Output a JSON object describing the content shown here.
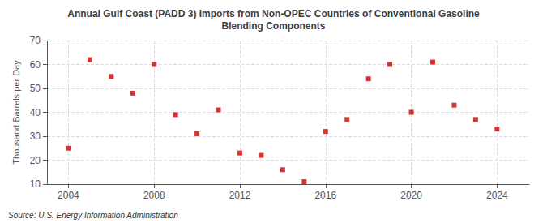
{
  "chart_data": {
    "type": "scatter",
    "title": "Annual Gulf Coast (PADD 3) Imports from Non-OPEC Countries of Conventional Gasoline\nBlending Components",
    "ylabel": "Thousand Barrels per Day",
    "annotation": "Source: U.S. Energy Information Administration",
    "x": [
      2004,
      2005,
      2006,
      2007,
      2008,
      2009,
      2010,
      2011,
      2012,
      2013,
      2014,
      2015,
      2016,
      2017,
      2018,
      2019,
      2020,
      2021,
      2022,
      2023,
      2024
    ],
    "values": [
      25,
      62,
      55,
      48,
      60,
      39,
      31,
      41,
      23,
      22,
      16,
      11,
      32,
      37,
      54,
      60,
      40,
      61,
      43,
      37,
      33
    ],
    "color": "#cc0000",
    "marker": "square",
    "xlim": [
      2003.0,
      2025.5
    ],
    "xticks": [
      2004,
      2008,
      2012,
      2016,
      2020,
      2024
    ],
    "ylim": [
      10,
      70
    ],
    "yticks": [
      10,
      20,
      30,
      40,
      50,
      60,
      70
    ],
    "grid": true
  }
}
